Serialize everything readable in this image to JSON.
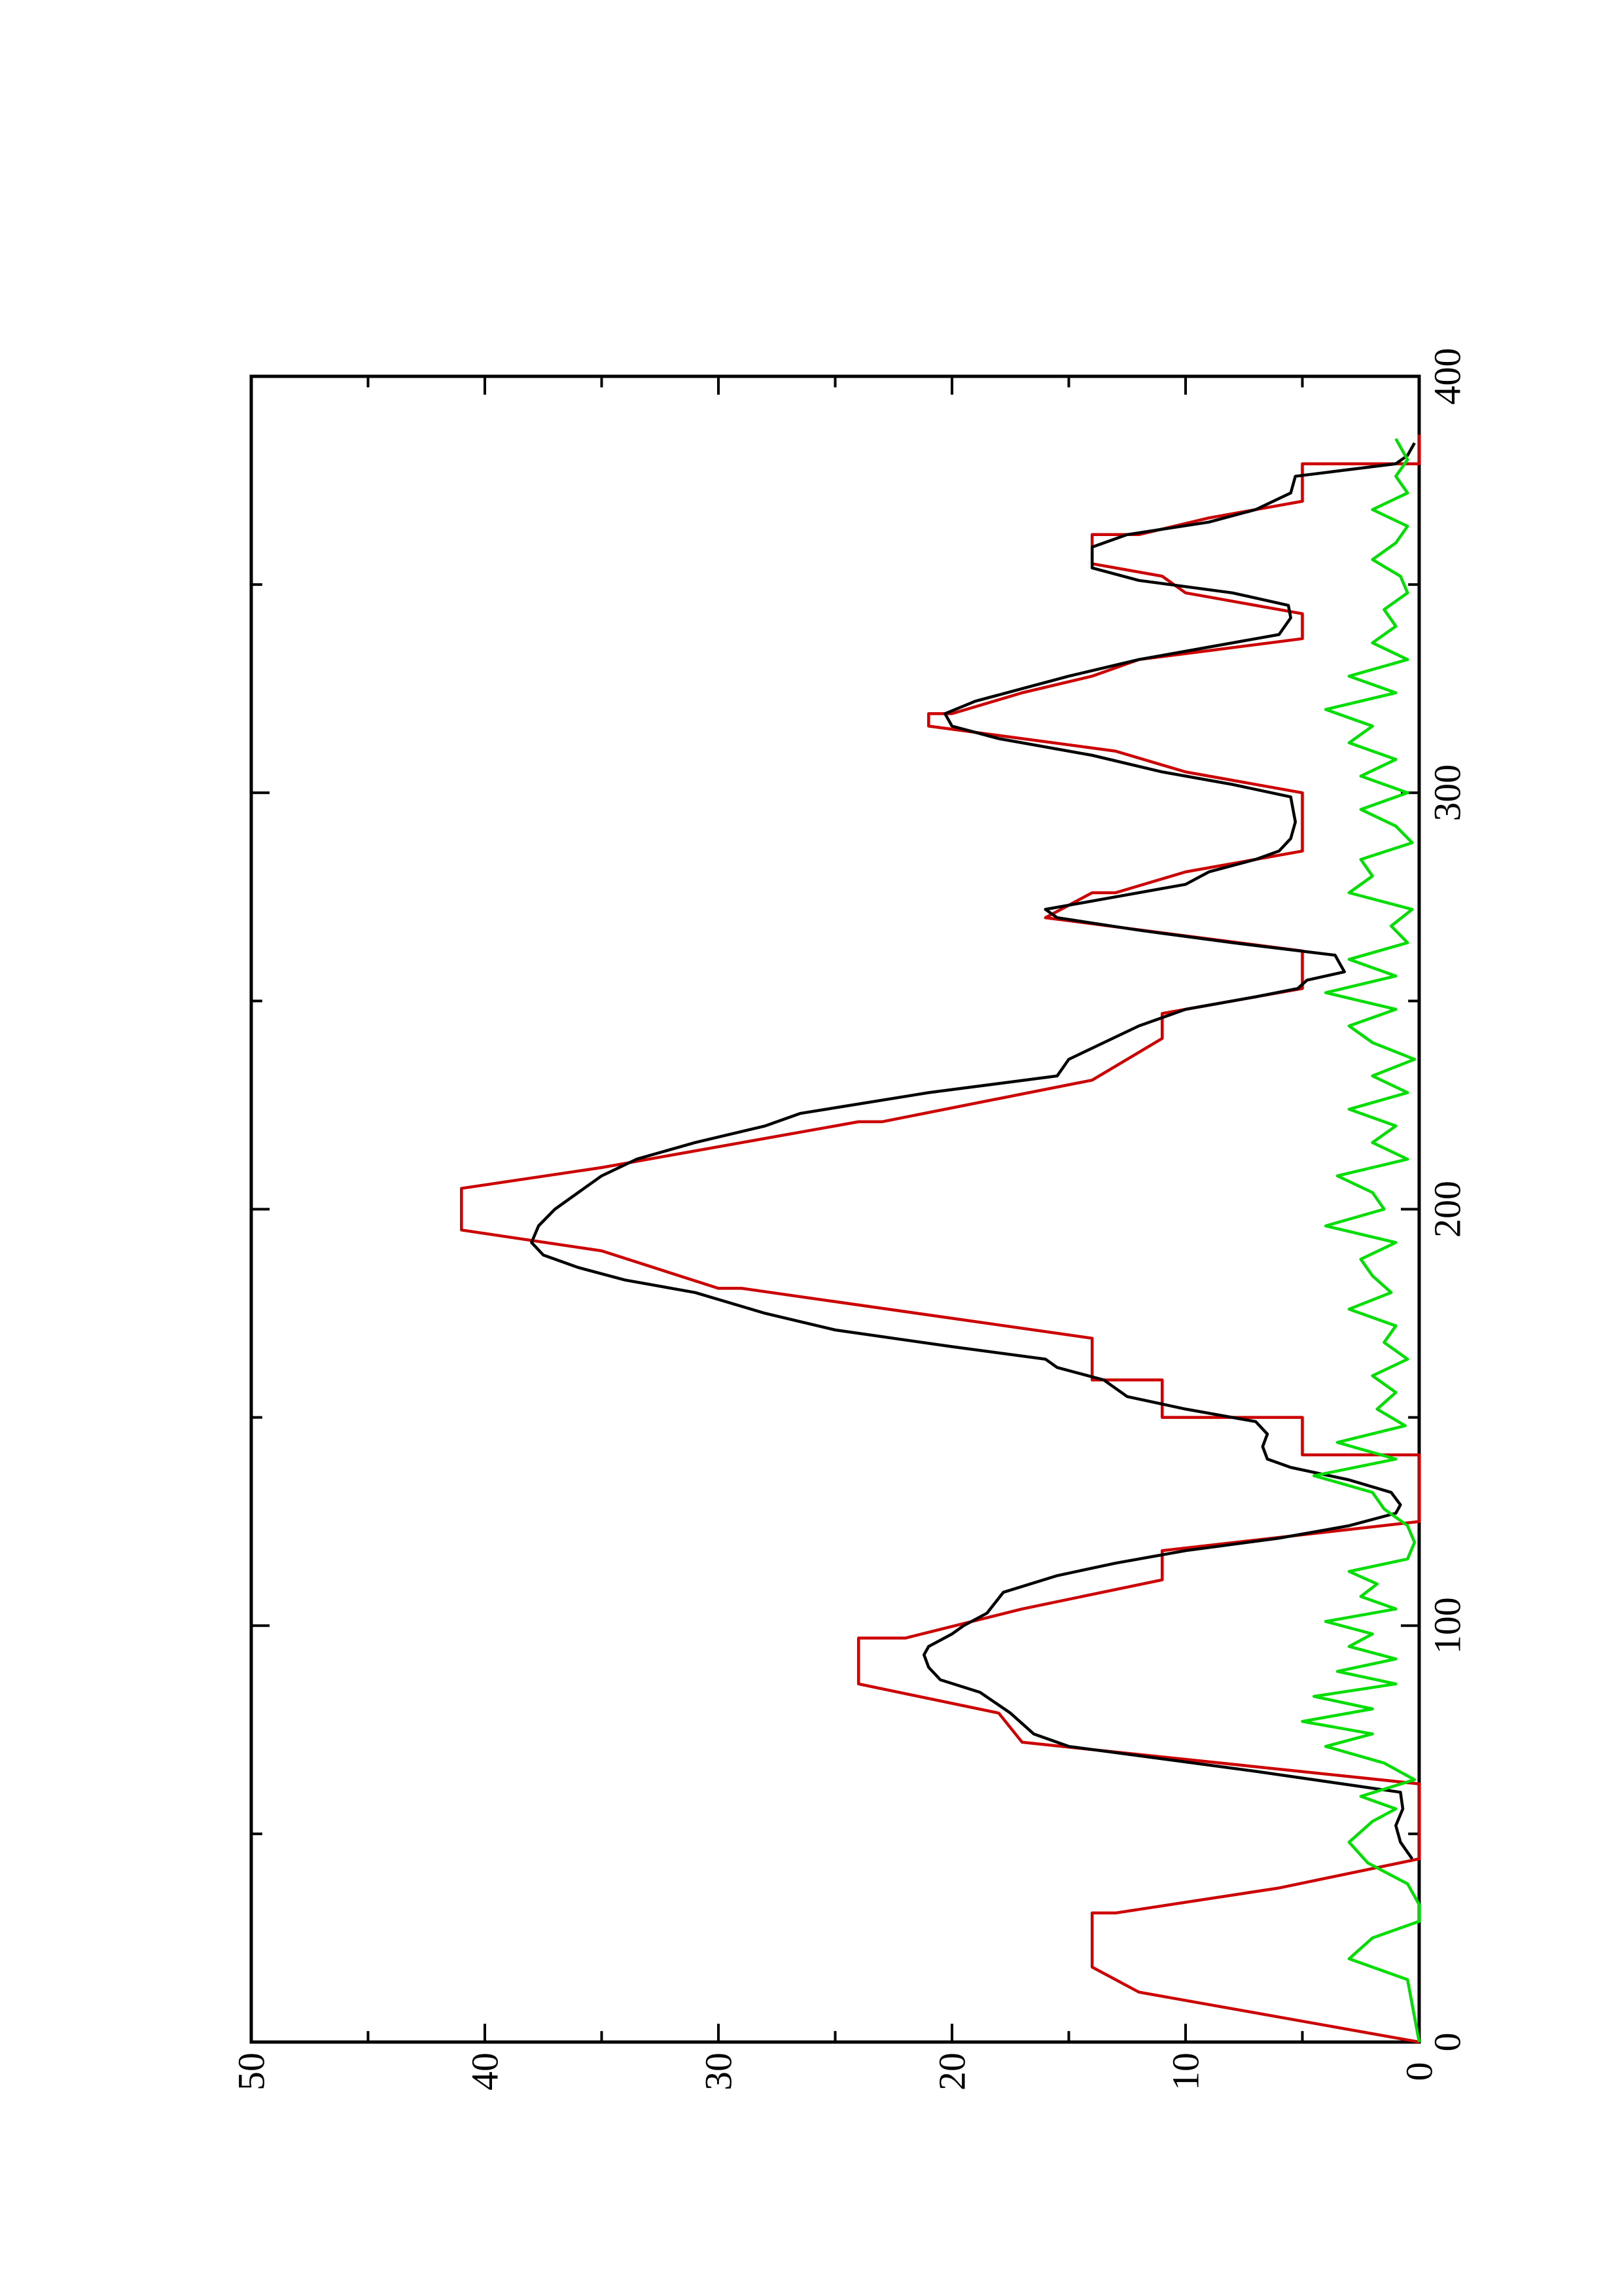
{
  "chart_data": {
    "type": "line",
    "orientation": "rotated-90-ccw",
    "title": "",
    "xlabel": "",
    "ylabel": "",
    "xlim": [
      0,
      400
    ],
    "ylim": [
      0,
      50
    ],
    "x_ticks": [
      "0",
      "100",
      "200",
      "300",
      "400"
    ],
    "y_ticks": [
      "0",
      "10",
      "20",
      "30",
      "40",
      "50"
    ],
    "x_minor_step": 50,
    "y_minor_step": 5,
    "grid": false,
    "legend": "none",
    "series": [
      {
        "color": "#cc0000",
        "points": [
          [
            0,
            0
          ],
          [
            6,
            6
          ],
          [
            6,
            6
          ],
          [
            12,
            12
          ],
          [
            12,
            12
          ],
          [
            18,
            14
          ],
          [
            31,
            14
          ],
          [
            31,
            13
          ],
          [
            37,
            6
          ],
          [
            37,
            6
          ],
          [
            44,
            0
          ],
          [
            62,
            0
          ],
          [
            72,
            17
          ],
          [
            72,
            17
          ],
          [
            79,
            18
          ],
          [
            86,
            24
          ],
          [
            97,
            24
          ],
          [
            97,
            22
          ],
          [
            104,
            17
          ],
          [
            104,
            17
          ],
          [
            111,
            11
          ],
          [
            118,
            11
          ],
          [
            125,
            0
          ],
          [
            141,
            0
          ],
          [
            141,
            5
          ],
          [
            150,
            5
          ],
          [
            150,
            11
          ],
          [
            159,
            11
          ],
          [
            159,
            14
          ],
          [
            169,
            14
          ],
          [
            181,
            29
          ],
          [
            181,
            30
          ],
          [
            190,
            35
          ],
          [
            195,
            41
          ],
          [
            205,
            41
          ],
          [
            210,
            35
          ],
          [
            221,
            24
          ],
          [
            221,
            23
          ],
          [
            231,
            14
          ],
          [
            231,
            14
          ],
          [
            241,
            11
          ],
          [
            247,
            11
          ],
          [
            247,
            11
          ],
          [
            253,
            5
          ],
          [
            262,
            5
          ],
          [
            270,
            16
          ],
          [
            270,
            16
          ],
          [
            276,
            14
          ],
          [
            276,
            13
          ],
          [
            281,
            10
          ],
          [
            281,
            10
          ],
          [
            286,
            5
          ],
          [
            300,
            5
          ],
          [
            305,
            10
          ],
          [
            305,
            10
          ],
          [
            310,
            13
          ],
          [
            310,
            13
          ],
          [
            316,
            21
          ],
          [
            319,
            21
          ],
          [
            319,
            20
          ],
          [
            324,
            17
          ],
          [
            324,
            17
          ],
          [
            328,
            14
          ],
          [
            328,
            14
          ],
          [
            332,
            12
          ],
          [
            332,
            12
          ],
          [
            337,
            5
          ],
          [
            343,
            5
          ],
          [
            343,
            5
          ],
          [
            348,
            10
          ],
          [
            348,
            10
          ],
          [
            352,
            11
          ],
          [
            352,
            11
          ],
          [
            355,
            14
          ],
          [
            362,
            14
          ],
          [
            362,
            12
          ],
          [
            366,
            9
          ],
          [
            366,
            9
          ],
          [
            370,
            5
          ],
          [
            379,
            5
          ],
          [
            379,
            0
          ],
          [
            386,
            0
          ]
        ]
      },
      {
        "color": "#000000",
        "points": [
          [
            44,
            0.3
          ],
          [
            48,
            0.8
          ],
          [
            52,
            1
          ],
          [
            56,
            0.7
          ],
          [
            60,
            0.8
          ],
          [
            65,
            7
          ],
          [
            68,
            11
          ],
          [
            71,
            15
          ],
          [
            74,
            16.5
          ],
          [
            79,
            17.5
          ],
          [
            84,
            18.8
          ],
          [
            87,
            20.5
          ],
          [
            90,
            21
          ],
          [
            93,
            21.2
          ],
          [
            95,
            21
          ],
          [
            98,
            20
          ],
          [
            100,
            19.5
          ],
          [
            103,
            18.5
          ],
          [
            108,
            17.8
          ],
          [
            112,
            15.5
          ],
          [
            115,
            13
          ],
          [
            118,
            10
          ],
          [
            121,
            6
          ],
          [
            124,
            3
          ],
          [
            127,
            1
          ],
          [
            129,
            0.8
          ],
          [
            132,
            1.2
          ],
          [
            135,
            3
          ],
          [
            138,
            5.5
          ],
          [
            140,
            6.5
          ],
          [
            143,
            6.7
          ],
          [
            146,
            6.5
          ],
          [
            149,
            7
          ],
          [
            152,
            10
          ],
          [
            155,
            12.5
          ],
          [
            159,
            13.5
          ],
          [
            162,
            15.5
          ],
          [
            164,
            16
          ],
          [
            167,
            20
          ],
          [
            171,
            25
          ],
          [
            175,
            28
          ],
          [
            180,
            31
          ],
          [
            183,
            34
          ],
          [
            186,
            36
          ],
          [
            189,
            37.5
          ],
          [
            192,
            38
          ],
          [
            196,
            37.7
          ],
          [
            200,
            37
          ],
          [
            204,
            36
          ],
          [
            208,
            35
          ],
          [
            212,
            33.5
          ],
          [
            216,
            31
          ],
          [
            220,
            28
          ],
          [
            223,
            26.5
          ],
          [
            228,
            21
          ],
          [
            232,
            15.5
          ],
          [
            236,
            15
          ],
          [
            240,
            13.5
          ],
          [
            244,
            12
          ],
          [
            248,
            10
          ],
          [
            251,
            7
          ],
          [
            253,
            5.2
          ],
          [
            255,
            4.8
          ],
          [
            257,
            3.2
          ],
          [
            259,
            3.4
          ],
          [
            261,
            3.6
          ],
          [
            264,
            8
          ],
          [
            267,
            12
          ],
          [
            270,
            15.5
          ],
          [
            272,
            16
          ],
          [
            275,
            13
          ],
          [
            278,
            10
          ],
          [
            281,
            9
          ],
          [
            284,
            7
          ],
          [
            286,
            6
          ],
          [
            289,
            5.5
          ],
          [
            293,
            5.3
          ],
          [
            296,
            5.4
          ],
          [
            299,
            5.5
          ],
          [
            302,
            8
          ],
          [
            305,
            11
          ],
          [
            309,
            14
          ],
          [
            313,
            18
          ],
          [
            316,
            20
          ],
          [
            319,
            20.3
          ],
          [
            322,
            19
          ],
          [
            325,
            17
          ],
          [
            328,
            15
          ],
          [
            332,
            12
          ],
          [
            335,
            9
          ],
          [
            338,
            6
          ],
          [
            342,
            5.5
          ],
          [
            345,
            5.6
          ],
          [
            348,
            8
          ],
          [
            351,
            12
          ],
          [
            354,
            14
          ],
          [
            359,
            14
          ],
          [
            362,
            12.5
          ],
          [
            365,
            9
          ],
          [
            368,
            7
          ],
          [
            372,
            5.5
          ],
          [
            376,
            5.3
          ],
          [
            379,
            1
          ],
          [
            381,
            0.5
          ],
          [
            384,
            0.2
          ]
        ]
      },
      {
        "color": "#00dd00",
        "points": [
          [
            0,
            0
          ],
          [
            15,
            0.5
          ],
          [
            20,
            3
          ],
          [
            25,
            2
          ],
          [
            29,
            0
          ],
          [
            33,
            0
          ],
          [
            38,
            0.5
          ],
          [
            43,
            2.2
          ],
          [
            48,
            3
          ],
          [
            53,
            2
          ],
          [
            56,
            1
          ],
          [
            59,
            2.5
          ],
          [
            63,
            0.2
          ],
          [
            67,
            1.5
          ],
          [
            71,
            4
          ],
          [
            74,
            2
          ],
          [
            77,
            5
          ],
          [
            80,
            2
          ],
          [
            83,
            4.5
          ],
          [
            86,
            1
          ],
          [
            89,
            3.5
          ],
          [
            92,
            1
          ],
          [
            95,
            3
          ],
          [
            98,
            2
          ],
          [
            101,
            4
          ],
          [
            104,
            1
          ],
          [
            107,
            2.5
          ],
          [
            110,
            1.8
          ],
          [
            113,
            3
          ],
          [
            116,
            0.5
          ],
          [
            120,
            0.2
          ],
          [
            124,
            0.5
          ],
          [
            128,
            1.5
          ],
          [
            132,
            2
          ],
          [
            136,
            4.5
          ],
          [
            140,
            1
          ],
          [
            144,
            3.5
          ],
          [
            148,
            0.6
          ],
          [
            152,
            1.8
          ],
          [
            156,
            1
          ],
          [
            160,
            2
          ],
          [
            164,
            0.5
          ],
          [
            168,
            1.5
          ],
          [
            172,
            1
          ],
          [
            176,
            3
          ],
          [
            180,
            1.2
          ],
          [
            184,
            2
          ],
          [
            188,
            2.5
          ],
          [
            192,
            1
          ],
          [
            196,
            4
          ],
          [
            200,
            1.5
          ],
          [
            204,
            2
          ],
          [
            208,
            3.5
          ],
          [
            212,
            0.5
          ],
          [
            216,
            2
          ],
          [
            220,
            1
          ],
          [
            224,
            3
          ],
          [
            228,
            0.5
          ],
          [
            232,
            2
          ],
          [
            236,
            0.2
          ],
          [
            240,
            2
          ],
          [
            244,
            3
          ],
          [
            248,
            1
          ],
          [
            252,
            4
          ],
          [
            256,
            1
          ],
          [
            260,
            3
          ],
          [
            264,
            0.5
          ],
          [
            268,
            1.2
          ],
          [
            272,
            0.3
          ],
          [
            276,
            3
          ],
          [
            280,
            2
          ],
          [
            284,
            2.5
          ],
          [
            288,
            0.3
          ],
          [
            292,
            1
          ],
          [
            296,
            2.5
          ],
          [
            300,
            0.5
          ],
          [
            304,
            2.5
          ],
          [
            308,
            1
          ],
          [
            312,
            3
          ],
          [
            316,
            2
          ],
          [
            320,
            4
          ],
          [
            324,
            1
          ],
          [
            328,
            3
          ],
          [
            332,
            0.5
          ],
          [
            336,
            2
          ],
          [
            340,
            1
          ],
          [
            344,
            1.5
          ],
          [
            348,
            0.5
          ],
          [
            352,
            0.8
          ],
          [
            356,
            2
          ],
          [
            360,
            1
          ],
          [
            364,
            0.5
          ],
          [
            368,
            2
          ],
          [
            372,
            0.5
          ],
          [
            376,
            1
          ],
          [
            380,
            0.5
          ],
          [
            385,
            1
          ]
        ]
      }
    ]
  }
}
